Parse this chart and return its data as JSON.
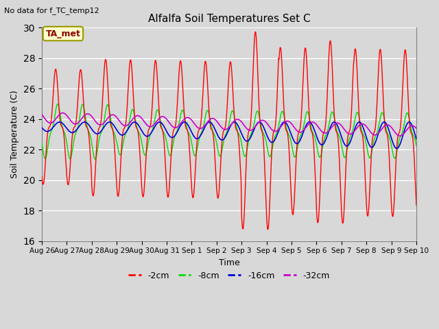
{
  "title": "Alfalfa Soil Temperatures Set C",
  "xlabel": "Time",
  "ylabel": "Soil Temperature (C)",
  "top_left_text": "No data for f_TC_temp12",
  "legend_label_text": "TA_met",
  "ylim": [
    16,
    30
  ],
  "yticks": [
    16,
    18,
    20,
    22,
    24,
    26,
    28,
    30
  ],
  "x_labels": [
    "Aug 26",
    "Aug 27",
    "Aug 28",
    "Aug 29",
    "Aug 30",
    "Aug 31",
    "Sep 1",
    "Sep 2",
    "Sep 3",
    "Sep 4",
    "Sep 5",
    "Sep 6",
    "Sep 7",
    "Sep 8",
    "Sep 9",
    "Sep 10"
  ],
  "background_color": "#d8d8d8",
  "colors": {
    "2cm": "#ff0000",
    "8cm": "#00dd00",
    "16cm": "#0000dd",
    "32cm": "#cc00cc"
  },
  "legend_entries": [
    "-2cm",
    "-8cm",
    "-16cm",
    "-32cm"
  ],
  "legend_colors": [
    "#ff0000",
    "#00dd00",
    "#0000dd",
    "#cc00cc"
  ]
}
